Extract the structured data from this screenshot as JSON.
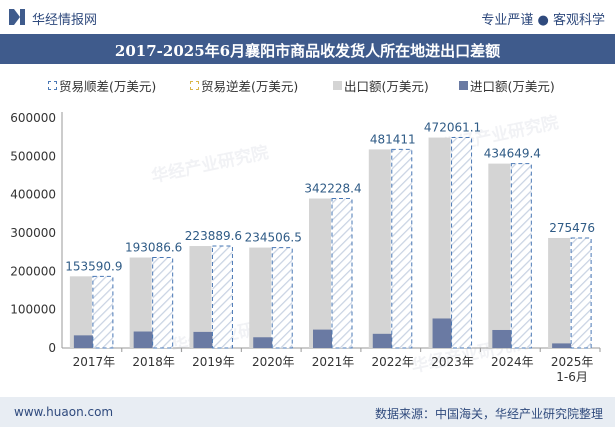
{
  "header": {
    "brand": "华经情报网",
    "slogan": "专业严谨 ● 客观科学"
  },
  "footer": {
    "website": "www.huaon.com",
    "source": "数据来源：中国海关，华经产业研究院整理"
  },
  "watermark": "华经产业研究院",
  "colors": {
    "header_bar": "#3f5b8c",
    "export": "#d4d4d4",
    "import": "#6a7aa3",
    "surplus": "#4a78b5",
    "deficit": "#d9b64a",
    "label": "#2f5b86"
  },
  "chart_data": {
    "type": "bar",
    "title": "2017-2025年6月襄阳市商品收发货人所在地进出口差额",
    "categories": [
      "2017年",
      "2018年",
      "2019年",
      "2020年",
      "2021年",
      "2022年",
      "2023年",
      "2024年",
      "2025年\n1-6月"
    ],
    "series": [
      {
        "name": "贸易顺差(万美元)",
        "values": [
          153590.9,
          193086.6,
          223889.6,
          234506.5,
          342228.4,
          481411,
          472061.1,
          434649.4,
          275476
        ]
      },
      {
        "name": "贸易逆差(万美元)",
        "values": [
          0,
          0,
          0,
          0,
          0,
          0,
          0,
          0,
          0
        ]
      },
      {
        "name": "出口额(万美元)",
        "values": [
          187000,
          236000,
          266000,
          262000,
          390000,
          518000,
          549000,
          481000,
          287000
        ]
      },
      {
        "name": "进口额(万美元)",
        "values": [
          33000,
          43000,
          42000,
          28000,
          48000,
          37000,
          77000,
          47000,
          12000
        ]
      }
    ],
    "data_labels": [
      "153590.9",
      "193086.6",
      "223889.6",
      "234506.5",
      "342228.4",
      "481411",
      "472061.1",
      "434649.4",
      "275476"
    ],
    "yticks": [
      "0",
      "100000",
      "200000",
      "300000",
      "400000",
      "500000",
      "600000"
    ],
    "ylim": [
      0,
      600000
    ],
    "legend_position": "top",
    "grid": false
  }
}
